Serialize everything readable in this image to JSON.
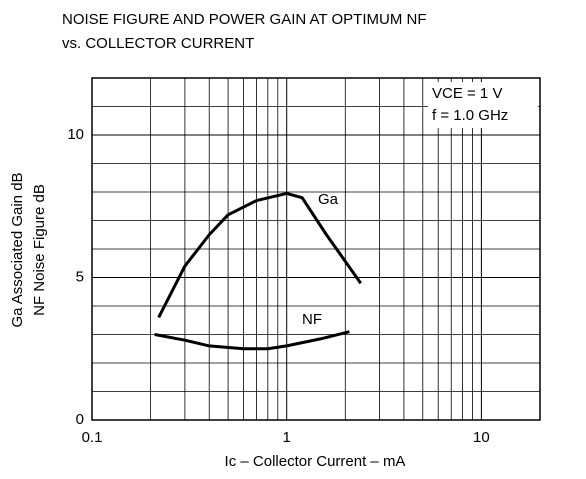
{
  "chart_data": {
    "type": "line",
    "title": [
      "NOISE FIGURE AND POWER GAIN AT OPTIMUM NF",
      "vs. COLLECTOR CURRENT"
    ],
    "xlabel": "Ic – Collector Current – mA",
    "ylabel": [
      "Ga  Associated Gain  dB",
      "NF  Noise Figure  dB"
    ],
    "annotations": [
      "VCE = 1 V",
      "f = 1.0 GHz"
    ],
    "xscale": "log",
    "xlim": [
      0.1,
      20
    ],
    "xticks": [
      0.1,
      1,
      10
    ],
    "ylim": [
      0,
      12
    ],
    "yticks": [
      0,
      5,
      10
    ],
    "grid": true,
    "series": [
      {
        "name": "Ga",
        "color": "#000000",
        "x": [
          0.22,
          0.3,
          0.4,
          0.5,
          0.7,
          1.0,
          1.2,
          1.6,
          2.4
        ],
        "values": [
          3.6,
          5.4,
          6.5,
          7.2,
          7.7,
          7.95,
          7.8,
          6.5,
          4.8
        ]
      },
      {
        "name": "NF",
        "color": "#000000",
        "x": [
          0.21,
          0.3,
          0.4,
          0.6,
          0.8,
          1.0,
          1.5,
          2.1
        ],
        "values": [
          3.0,
          2.8,
          2.6,
          2.5,
          2.5,
          2.6,
          2.85,
          3.1
        ]
      }
    ]
  }
}
